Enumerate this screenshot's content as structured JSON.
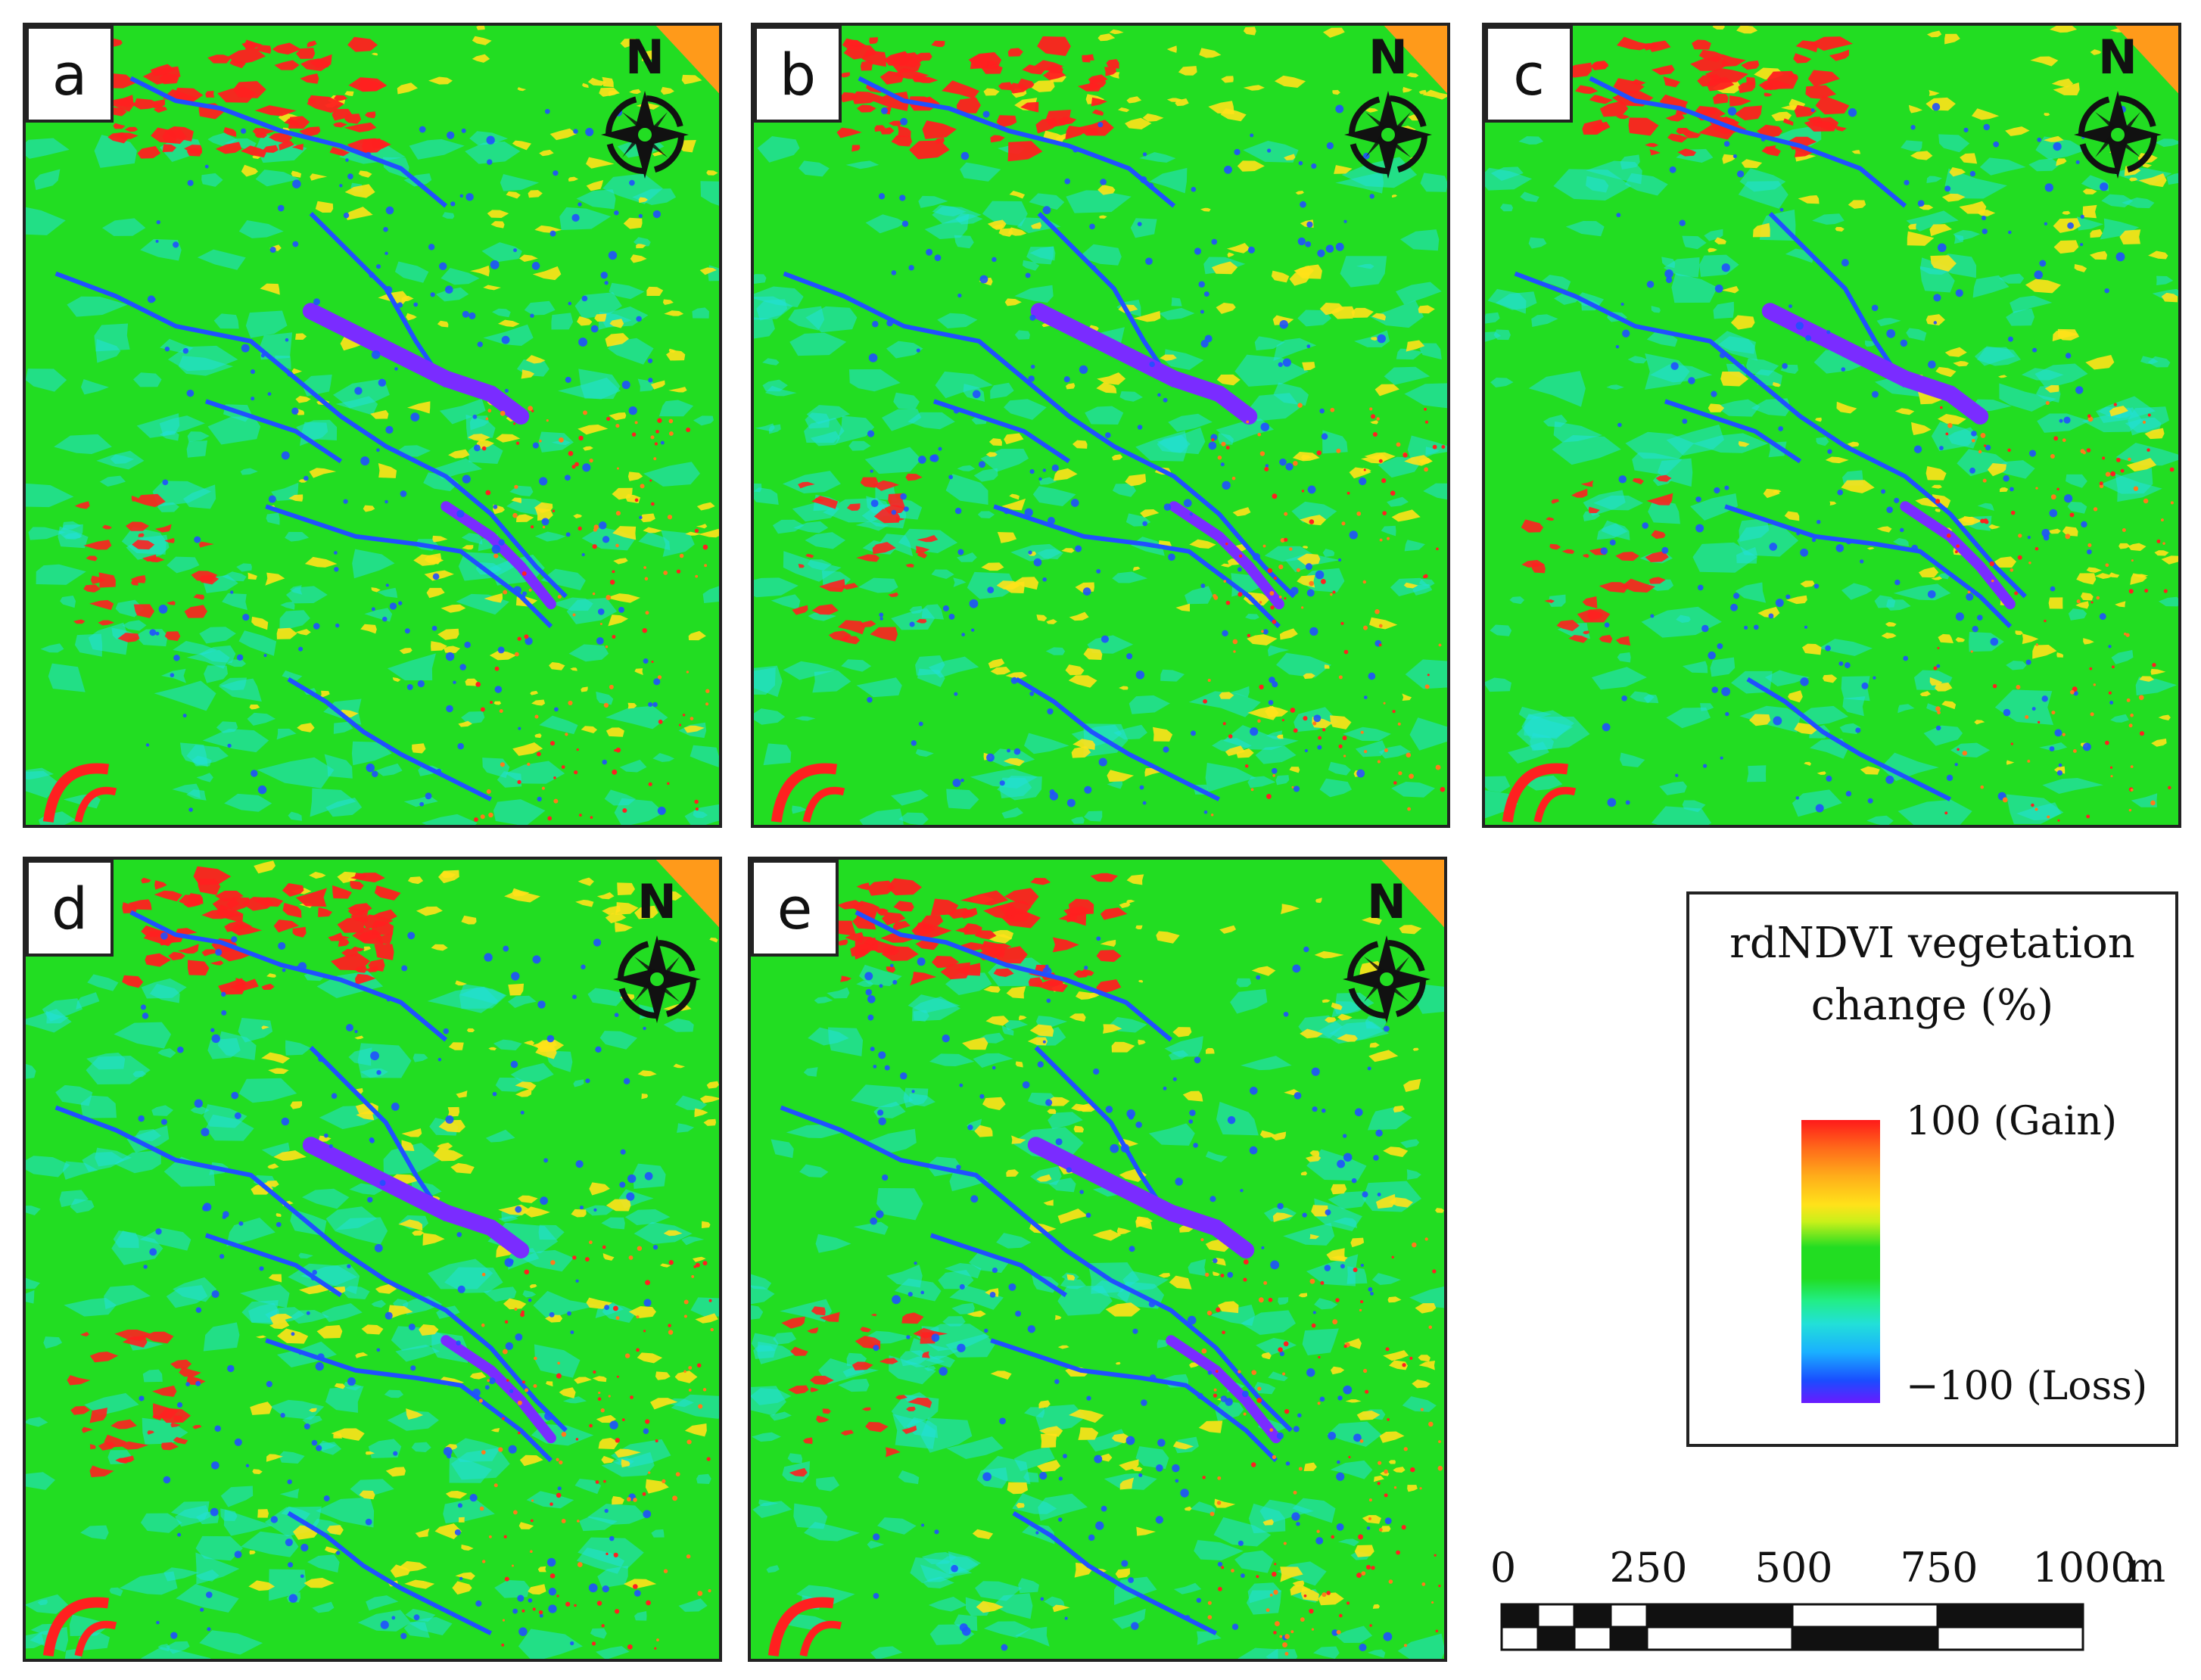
{
  "panels": [
    {
      "label": "a"
    },
    {
      "label": "b"
    },
    {
      "label": "c"
    },
    {
      "label": "d"
    },
    {
      "label": "e"
    }
  ],
  "north_arrow": {
    "letter": "N",
    "icon": "compass-rose-icon"
  },
  "legend": {
    "title_line1": "rdNDVI vegetation",
    "title_line2": "change (%)",
    "max_label": "100 (Gain)",
    "min_label": "−100 (Loss)",
    "colors": [
      "#ff1a1a",
      "#ffae1a",
      "#ffe21a",
      "#22dd22",
      "#22e0d8",
      "#1a4dff",
      "#6a1aff"
    ]
  },
  "scale_bar": {
    "ticks": [
      "0",
      "250",
      "500",
      "750",
      "1000"
    ],
    "unit": "m"
  },
  "map_colors": {
    "background": "#22dd22",
    "gain": "#ff2020",
    "moderate_gain": "#ffe21a",
    "slight_loss": "#22e0d8",
    "loss": "#2050ff",
    "severe_loss": "#7a2cff"
  }
}
